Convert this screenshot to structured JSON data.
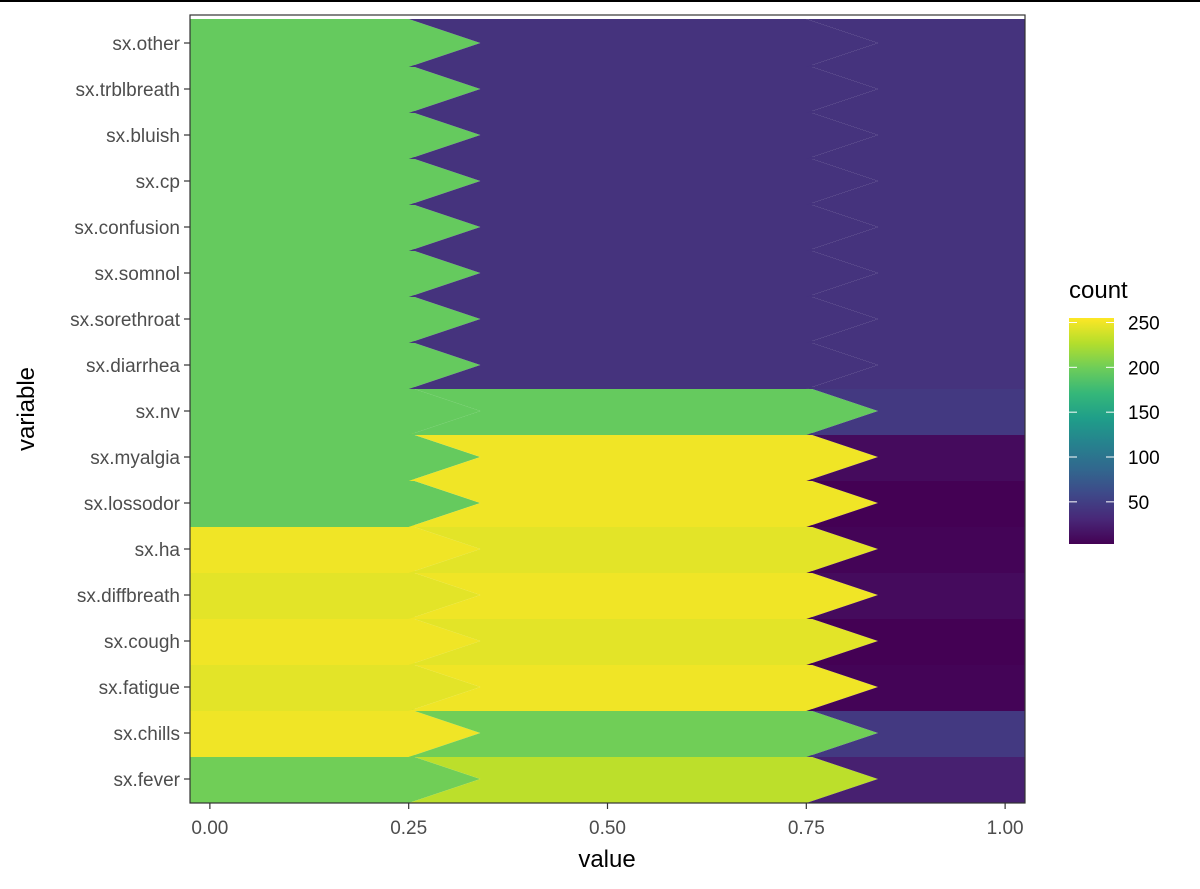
{
  "chart_data": {
    "type": "area",
    "description_kind": "ggridges-like smoothed raster heatmap",
    "xlabel": "value",
    "ylabel": "variable",
    "x_ticks": [
      0.0,
      0.25,
      0.5,
      0.75,
      1.0
    ],
    "x_tick_labels": [
      "0.00",
      "0.25",
      "0.50",
      "0.75",
      "1.00"
    ],
    "xlim": [
      -0.025,
      1.025
    ],
    "categories": [
      "sx.fever",
      "sx.chills",
      "sx.fatigue",
      "sx.cough",
      "sx.diffbreath",
      "sx.ha",
      "sx.lossodor",
      "sx.myalgia",
      "sx.nv",
      "sx.diarrhea",
      "sx.sorethroat",
      "sx.somnol",
      "sx.confusion",
      "sx.cp",
      "sx.bluish",
      "sx.trblbreath",
      "sx.other"
    ],
    "x": [
      0,
      0.5,
      1
    ],
    "series": [
      {
        "category": "sx.fever",
        "values": [
          200,
          230,
          25
        ]
      },
      {
        "category": "sx.chills",
        "values": [
          250,
          200,
          45
        ]
      },
      {
        "category": "sx.fatigue",
        "values": [
          245,
          250,
          5
        ]
      },
      {
        "category": "sx.cough",
        "values": [
          250,
          245,
          2
        ]
      },
      {
        "category": "sx.diffbreath",
        "values": [
          245,
          250,
          10
        ]
      },
      {
        "category": "sx.ha",
        "values": [
          250,
          245,
          5
        ]
      },
      {
        "category": "sx.lossodor",
        "values": [
          195,
          250,
          2
        ]
      },
      {
        "category": "sx.myalgia",
        "values": [
          195,
          250,
          10
        ]
      },
      {
        "category": "sx.nv",
        "values": [
          195,
          195,
          45
        ]
      },
      {
        "category": "sx.diarrhea",
        "values": [
          195,
          40,
          40
        ]
      },
      {
        "category": "sx.sorethroat",
        "values": [
          195,
          40,
          40
        ]
      },
      {
        "category": "sx.somnol",
        "values": [
          195,
          40,
          40
        ]
      },
      {
        "category": "sx.confusion",
        "values": [
          195,
          40,
          40
        ]
      },
      {
        "category": "sx.cp",
        "values": [
          195,
          40,
          40
        ]
      },
      {
        "category": "sx.bluish",
        "values": [
          195,
          40,
          40
        ]
      },
      {
        "category": "sx.trblbreath",
        "values": [
          195,
          40,
          40
        ]
      },
      {
        "category": "sx.other",
        "values": [
          195,
          40,
          40
        ]
      }
    ],
    "legend": {
      "title": "count",
      "ticks": [
        50,
        100,
        150,
        200,
        250
      ],
      "range": [
        3,
        255
      ],
      "placement": "right",
      "palette": [
        "#440154",
        "#482878",
        "#3e4989",
        "#31688e",
        "#26828e",
        "#1f9e89",
        "#35b779",
        "#6dcd59",
        "#b4de2c",
        "#fde725"
      ]
    }
  }
}
